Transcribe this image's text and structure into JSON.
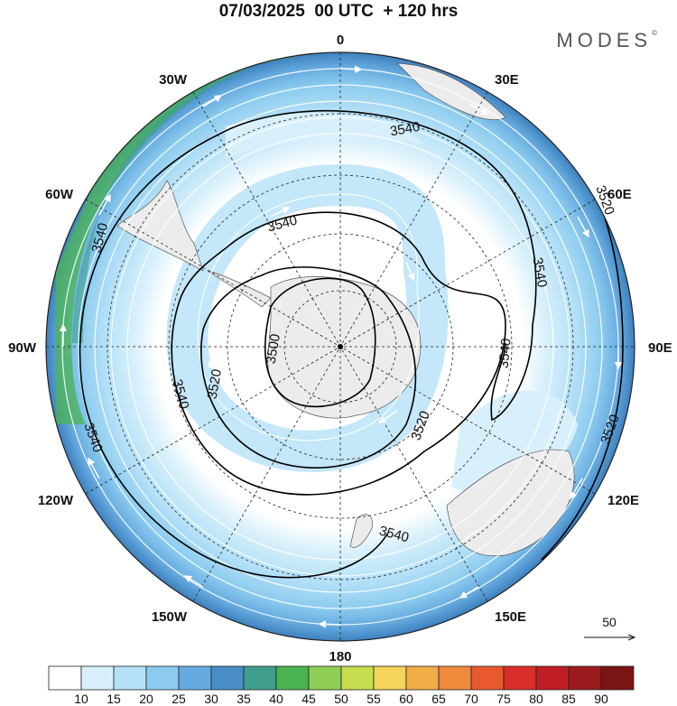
{
  "title": "07/03/2025  00 UTC  + 120 hrs",
  "brand": "MODES",
  "brand_mark": "©",
  "longitude_labels": {
    "top": "0",
    "bottom": "180",
    "left": "90W",
    "right": "90E",
    "n30w": "30W",
    "n30e": "30E",
    "n60w": "60W",
    "n60e": "60E",
    "s60w": "120W",
    "s60e": "120E",
    "s30w": "150W",
    "s30e": "150E"
  },
  "contour_labels": {
    "c3500": "3500",
    "c3520a": "3520",
    "c3520b": "3520",
    "c3520c": "3520",
    "c3520d": "3520",
    "c3540a": "3540",
    "c3540b": "3540",
    "c3540c": "3540",
    "c3540d": "3540",
    "c3540e": "3540",
    "c3540f": "3540",
    "c3540g": "3540",
    "c3540h": "3540"
  },
  "vector_reference": "50",
  "colorbar": {
    "ticks": [
      "10",
      "15",
      "20",
      "25",
      "30",
      "35",
      "40",
      "45",
      "50",
      "55",
      "60",
      "65",
      "70",
      "75",
      "80",
      "85",
      "90"
    ],
    "colors": [
      "#ffffff",
      "#d8f0fb",
      "#b5e1f7",
      "#8ccbef",
      "#66abdf",
      "#4a8ec9",
      "#3f9e8c",
      "#4bb352",
      "#8fce55",
      "#c6dd4f",
      "#f4d45a",
      "#f2ad49",
      "#ee8a3b",
      "#e8592f",
      "#d92e2a",
      "#bf1e24",
      "#9a1a1d",
      "#7a1417"
    ]
  },
  "map": {
    "projection": "polar stereographic, south pole",
    "field": "wind speed shaded with contour lines of height",
    "contour_levels": [
      3500,
      3520,
      3540
    ]
  }
}
